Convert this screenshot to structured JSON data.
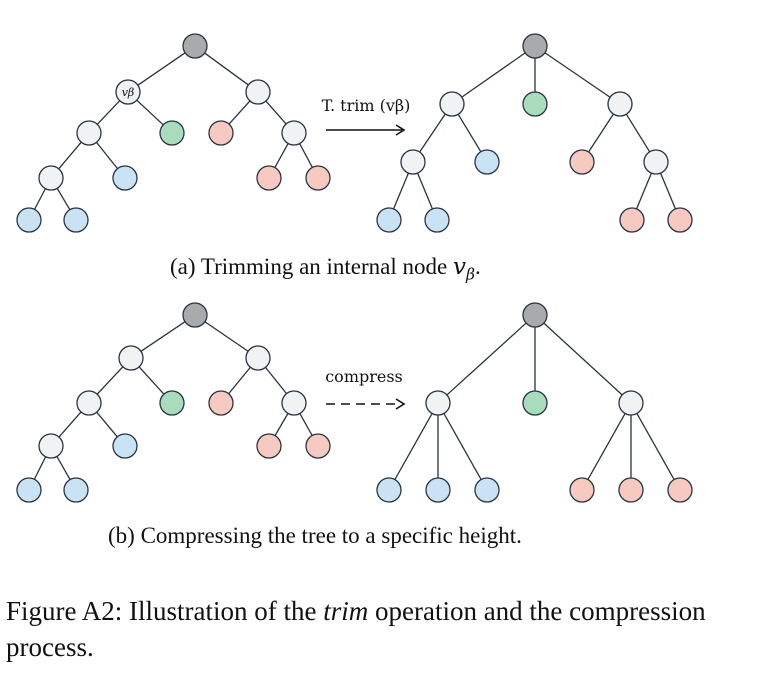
{
  "panel_a": {
    "arrow_label": "T. trim (vβ)",
    "node_label": "vβ",
    "caption_prefix": "(a) Trimming an internal node ",
    "caption_var": "v",
    "caption_sub": "β",
    "caption_suffix": "."
  },
  "panel_b": {
    "arrow_label": "compress",
    "caption": "(b) Compressing the tree to a specific height."
  },
  "figure_caption": {
    "prefix": "Figure A2: Illustration of the ",
    "emphasis": "trim",
    "suffix": " operation and the compression process."
  },
  "colors": {
    "root": "#a9aaab",
    "internal": "#f1f2f3",
    "blue_leaf": "#c9e3f5",
    "green_leaf": "#a8dcbd",
    "red_leaf": "#f7cac1",
    "stroke": "#2a3340"
  },
  "trees": [
    {
      "id": "a-before",
      "nodes": [
        {
          "id": "r",
          "c": "root"
        },
        {
          "id": "b",
          "c": "internal",
          "label": true
        },
        {
          "id": "g",
          "c": "green_leaf"
        },
        {
          "id": "R",
          "c": "internal"
        },
        {
          "id": "p1",
          "c": "red_leaf"
        },
        {
          "id": "i1",
          "c": "internal"
        },
        {
          "id": "i2",
          "c": "internal"
        },
        {
          "id": "bl1",
          "c": "blue_leaf"
        },
        {
          "id": "bl2",
          "c": "blue_leaf"
        },
        {
          "id": "bl3",
          "c": "blue_leaf"
        },
        {
          "id": "ri",
          "c": "internal"
        },
        {
          "id": "p2",
          "c": "red_leaf"
        },
        {
          "id": "p3",
          "c": "red_leaf"
        }
      ],
      "edges": [
        [
          "r",
          "b"
        ],
        [
          "r",
          "R"
        ],
        [
          "b",
          "i1"
        ],
        [
          "b",
          "g"
        ],
        [
          "i1",
          "i2"
        ],
        [
          "i1",
          "bl1"
        ],
        [
          "i2",
          "bl2"
        ],
        [
          "i2",
          "bl3"
        ],
        [
          "R",
          "p1"
        ],
        [
          "R",
          "ri"
        ],
        [
          "ri",
          "p2"
        ],
        [
          "ri",
          "p3"
        ]
      ]
    },
    {
      "id": "a-after",
      "nodes": [
        {
          "id": "r",
          "c": "root"
        },
        {
          "id": "L",
          "c": "internal"
        },
        {
          "id": "g",
          "c": "green_leaf"
        },
        {
          "id": "R",
          "c": "internal"
        },
        {
          "id": "i1",
          "c": "internal"
        },
        {
          "id": "bl1",
          "c": "blue_leaf"
        },
        {
          "id": "bl2",
          "c": "blue_leaf"
        },
        {
          "id": "bl3",
          "c": "blue_leaf"
        },
        {
          "id": "p1",
          "c": "red_leaf"
        },
        {
          "id": "ri",
          "c": "internal"
        },
        {
          "id": "p2",
          "c": "red_leaf"
        },
        {
          "id": "p3",
          "c": "red_leaf"
        }
      ],
      "edges": [
        [
          "r",
          "L"
        ],
        [
          "r",
          "g"
        ],
        [
          "r",
          "R"
        ],
        [
          "L",
          "i1"
        ],
        [
          "L",
          "bl1"
        ],
        [
          "i1",
          "bl2"
        ],
        [
          "i1",
          "bl3"
        ],
        [
          "R",
          "p1"
        ],
        [
          "R",
          "ri"
        ],
        [
          "ri",
          "p2"
        ],
        [
          "ri",
          "p3"
        ]
      ]
    },
    {
      "id": "b-before",
      "nodes": [
        {
          "id": "r",
          "c": "root"
        },
        {
          "id": "L",
          "c": "internal"
        },
        {
          "id": "R",
          "c": "internal"
        },
        {
          "id": "i1",
          "c": "internal"
        },
        {
          "id": "g",
          "c": "green_leaf"
        },
        {
          "id": "p1",
          "c": "red_leaf"
        },
        {
          "id": "ri",
          "c": "internal"
        },
        {
          "id": "i2",
          "c": "internal"
        },
        {
          "id": "bl1",
          "c": "blue_leaf"
        },
        {
          "id": "p2",
          "c": "red_leaf"
        },
        {
          "id": "p3",
          "c": "red_leaf"
        },
        {
          "id": "bl2",
          "c": "blue_leaf"
        },
        {
          "id": "bl3",
          "c": "blue_leaf"
        }
      ],
      "edges": [
        [
          "r",
          "L"
        ],
        [
          "r",
          "R"
        ],
        [
          "L",
          "i1"
        ],
        [
          "L",
          "g"
        ],
        [
          "R",
          "p1"
        ],
        [
          "R",
          "ri"
        ],
        [
          "i1",
          "i2"
        ],
        [
          "i1",
          "bl1"
        ],
        [
          "ri",
          "p2"
        ],
        [
          "ri",
          "p3"
        ],
        [
          "i2",
          "bl2"
        ],
        [
          "i2",
          "bl3"
        ]
      ]
    },
    {
      "id": "b-after",
      "nodes": [
        {
          "id": "r",
          "c": "root"
        },
        {
          "id": "L",
          "c": "internal"
        },
        {
          "id": "g",
          "c": "green_leaf"
        },
        {
          "id": "R",
          "c": "internal"
        },
        {
          "id": "b1",
          "c": "blue_leaf"
        },
        {
          "id": "b2",
          "c": "blue_leaf"
        },
        {
          "id": "b3",
          "c": "blue_leaf"
        },
        {
          "id": "p1",
          "c": "red_leaf"
        },
        {
          "id": "p2",
          "c": "red_leaf"
        },
        {
          "id": "p3",
          "c": "red_leaf"
        }
      ],
      "edges": [
        [
          "r",
          "L"
        ],
        [
          "r",
          "g"
        ],
        [
          "r",
          "R"
        ],
        [
          "L",
          "b1"
        ],
        [
          "L",
          "b2"
        ],
        [
          "L",
          "b3"
        ],
        [
          "R",
          "p1"
        ],
        [
          "R",
          "p2"
        ],
        [
          "R",
          "p3"
        ]
      ]
    }
  ]
}
